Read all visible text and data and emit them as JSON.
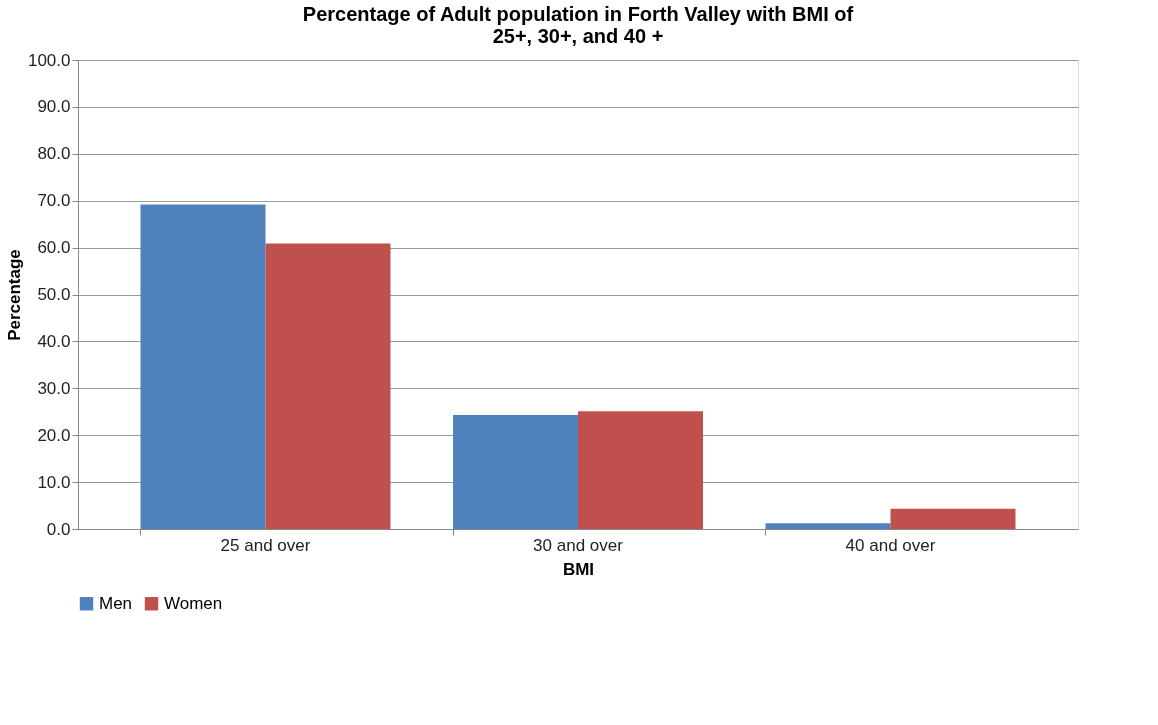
{
  "chart_data": {
    "type": "bar",
    "title": [
      "Percentage of Adult population in Forth Valley with BMI of",
      "25+, 30+, and 40 +"
    ],
    "xlabel": "BMI",
    "ylabel": "Percentage",
    "categories": [
      "25 and over",
      "30 and over",
      "40 and over"
    ],
    "series": [
      {
        "name": "Men",
        "color": "#4f81bd",
        "values": [
          69.2,
          24.3,
          1.2
        ]
      },
      {
        "name": "Women",
        "color": "#c0504d",
        "values": [
          60.9,
          25.1,
          4.3
        ]
      }
    ],
    "ylim": [
      0,
      100
    ],
    "yticks": [
      {
        "value": 0,
        "label": "0.0"
      },
      {
        "value": 10,
        "label": "10.0"
      },
      {
        "value": 20,
        "label": "20.0"
      },
      {
        "value": 30,
        "label": "30.0"
      },
      {
        "value": 40,
        "label": "40.0"
      },
      {
        "value": 50,
        "label": "50.0"
      },
      {
        "value": 60,
        "label": "60.0"
      },
      {
        "value": 70,
        "label": "70.0"
      },
      {
        "value": 80,
        "label": "80.0"
      },
      {
        "value": 90,
        "label": "90.0"
      },
      {
        "value": 100,
        "label": "100.0"
      }
    ],
    "grid": "y",
    "legend": "bottom"
  }
}
